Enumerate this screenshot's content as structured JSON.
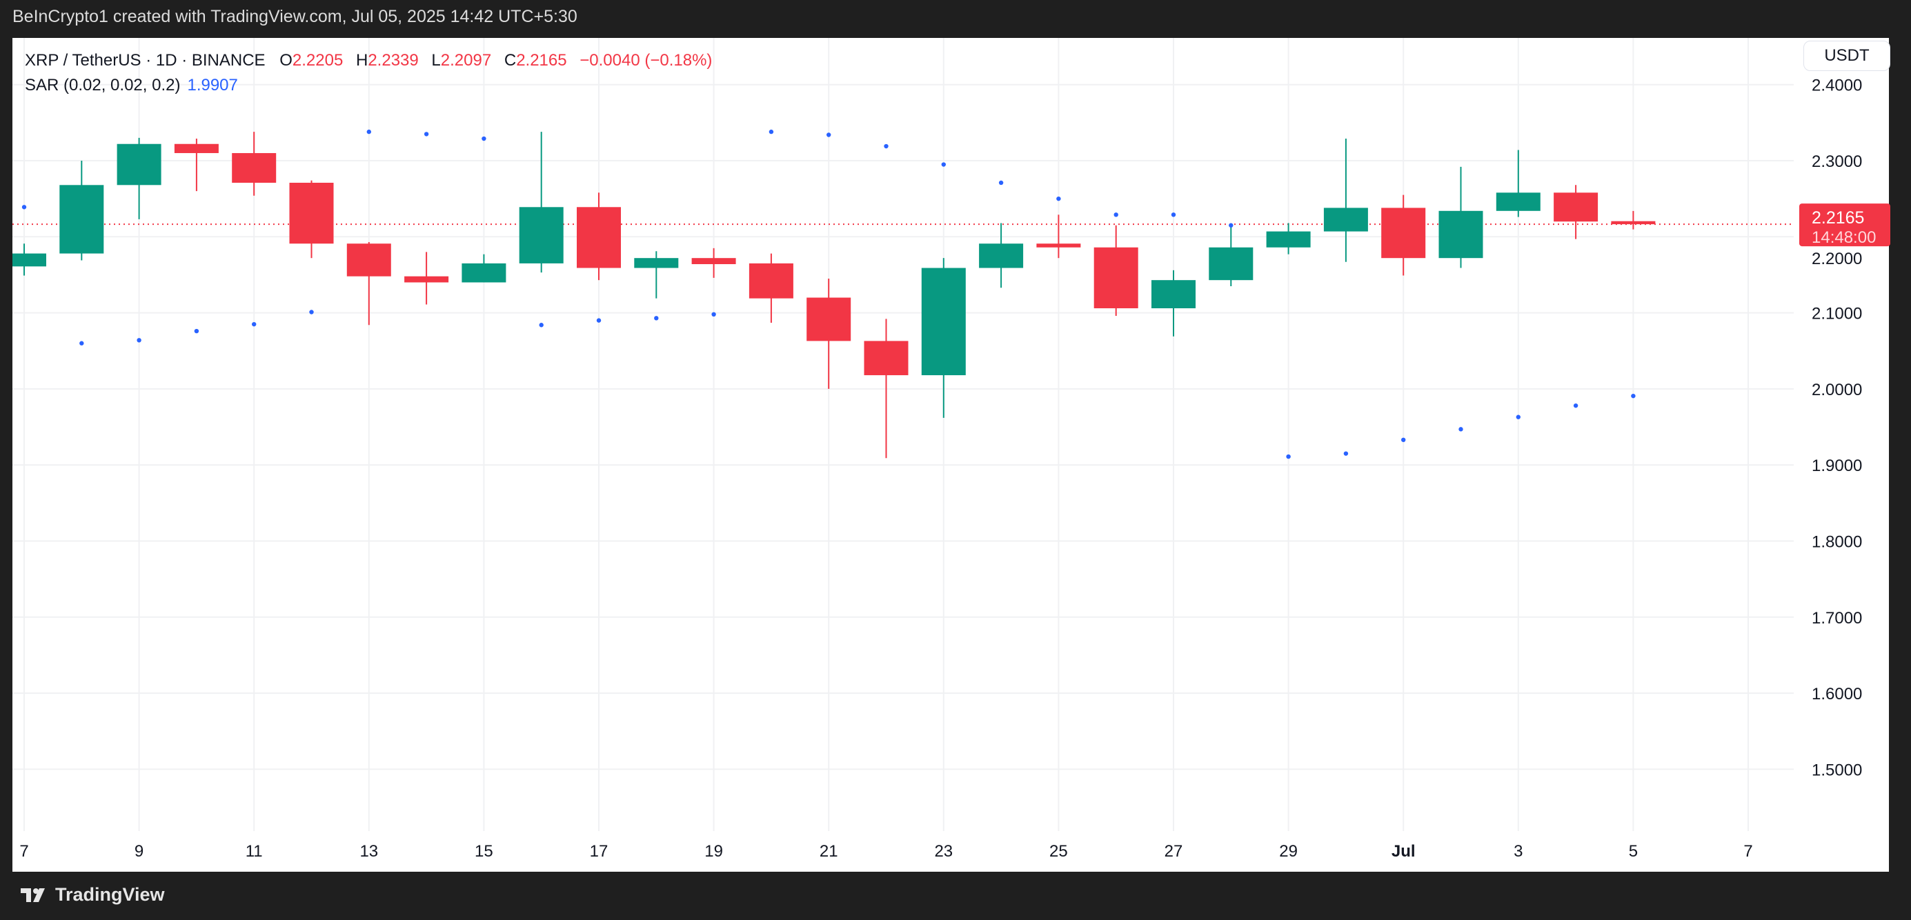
{
  "header": {
    "created_by": "BeInCrypto1 created with TradingView.com, Jul 05, 2025 14:42 UTC+5:30"
  },
  "legend": {
    "symbol": "XRP / TetherUS · 1D · BINANCE",
    "o_label": "O",
    "o": "2.2205",
    "h_label": "H",
    "h": "2.2339",
    "l_label": "L",
    "l": "2.2097",
    "c_label": "C",
    "c": "2.2165",
    "change": "−0.0040 (−0.18%)",
    "sar_label": "SAR (0.02, 0.02, 0.2)",
    "sar_value": "1.9907"
  },
  "currency_button": "USDT",
  "last_price": {
    "price": "2.2165",
    "countdown": "14:48:00"
  },
  "footer": {
    "brand": "TradingView"
  },
  "colors": {
    "up": "#089981",
    "down": "#f23645",
    "sar": "#2962ff",
    "grid": "#f0f1f3"
  },
  "chart_data": {
    "type": "candlestick",
    "title": "XRP / TetherUS · 1D · BINANCE",
    "ylim": [
      1.42,
      2.42
    ],
    "y_ticks": [
      "2.4000",
      "2.3000",
      "2.2000",
      "2.1000",
      "2.0000",
      "1.9000",
      "1.8000",
      "1.7000",
      "1.6000",
      "1.5000"
    ],
    "y_tick_values": [
      2.4,
      2.3,
      2.2,
      2.1,
      2.0,
      1.9,
      1.8,
      1.7,
      1.6,
      1.5
    ],
    "x_ticks": [
      "7",
      "9",
      "11",
      "13",
      "15",
      "17",
      "19",
      "21",
      "23",
      "25",
      "27",
      "29",
      "Jul",
      "3",
      "5",
      "7"
    ],
    "x_tick_index": [
      0,
      2,
      4,
      6,
      8,
      10,
      12,
      14,
      16,
      18,
      20,
      22,
      24,
      26,
      28,
      30
    ],
    "dates": [
      "Jun 7",
      "Jun 8",
      "Jun 9",
      "Jun 10",
      "Jun 11",
      "Jun 12",
      "Jun 13",
      "Jun 14",
      "Jun 15",
      "Jun 16",
      "Jun 17",
      "Jun 18",
      "Jun 19",
      "Jun 20",
      "Jun 21",
      "Jun 22",
      "Jun 23",
      "Jun 24",
      "Jun 25",
      "Jun 26",
      "Jun 27",
      "Jun 28",
      "Jun 29",
      "Jun 30",
      "Jul 1",
      "Jul 2",
      "Jul 3",
      "Jul 4",
      "Jul 5"
    ],
    "ohlc": [
      [
        2.161,
        2.191,
        2.149,
        2.178
      ],
      [
        2.178,
        2.3,
        2.169,
        2.268
      ],
      [
        2.268,
        2.33,
        2.223,
        2.322
      ],
      [
        2.322,
        2.329,
        2.26,
        2.31
      ],
      [
        2.31,
        2.338,
        2.254,
        2.271
      ],
      [
        2.271,
        2.274,
        2.172,
        2.191
      ],
      [
        2.191,
        2.193,
        2.084,
        2.148
      ],
      [
        2.148,
        2.18,
        2.111,
        2.14
      ],
      [
        2.14,
        2.177,
        2.14,
        2.165
      ],
      [
        2.165,
        2.338,
        2.153,
        2.239
      ],
      [
        2.239,
        2.258,
        2.143,
        2.159
      ],
      [
        2.159,
        2.181,
        2.119,
        2.172
      ],
      [
        2.172,
        2.185,
        2.146,
        2.164
      ],
      [
        2.165,
        2.178,
        2.087,
        2.119
      ],
      [
        2.12,
        2.145,
        2.0,
        2.063
      ],
      [
        2.063,
        2.092,
        1.909,
        2.018
      ],
      [
        2.018,
        2.172,
        1.962,
        2.159
      ],
      [
        2.159,
        2.218,
        2.133,
        2.191
      ],
      [
        2.191,
        2.229,
        2.172,
        2.186
      ],
      [
        2.186,
        2.215,
        2.096,
        2.106
      ],
      [
        2.106,
        2.156,
        2.069,
        2.143
      ],
      [
        2.143,
        2.215,
        2.135,
        2.186
      ],
      [
        2.186,
        2.218,
        2.177,
        2.207
      ],
      [
        2.207,
        2.329,
        2.167,
        2.238
      ],
      [
        2.238,
        2.255,
        2.149,
        2.172
      ],
      [
        2.172,
        2.292,
        2.159,
        2.234
      ],
      [
        2.234,
        2.314,
        2.226,
        2.258
      ],
      [
        2.258,
        2.268,
        2.197,
        2.22
      ],
      [
        2.2205,
        2.2339,
        2.2097,
        2.2165
      ]
    ],
    "sar": [
      2.239,
      2.06,
      2.064,
      2.076,
      2.085,
      2.101,
      2.338,
      2.335,
      2.329,
      2.084,
      2.09,
      2.093,
      2.098,
      2.338,
      2.334,
      2.319,
      2.295,
      2.271,
      2.25,
      2.229,
      2.229,
      2.215,
      1.911,
      1.915,
      1.933,
      1.947,
      1.963,
      1.978,
      1.9907
    ],
    "last_price_line": 2.2165
  }
}
